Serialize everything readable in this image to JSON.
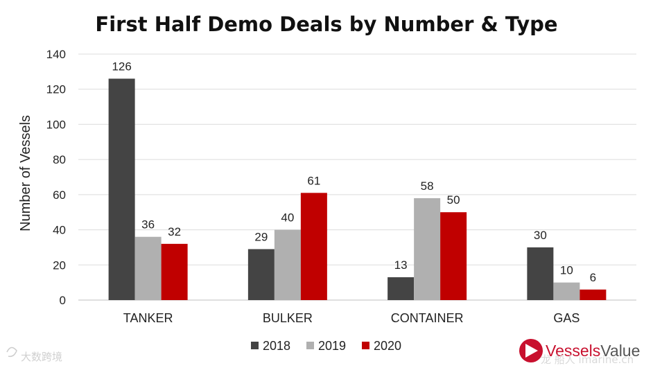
{
  "chart_data": {
    "type": "bar",
    "title": "First Half Demo Deals by Number & Type",
    "xlabel": "",
    "ylabel": "Number of Vessels",
    "ylim": [
      0,
      140
    ],
    "yticks": [
      0,
      20,
      40,
      60,
      80,
      100,
      120,
      140
    ],
    "grid": true,
    "legend_position": "bottom",
    "categories": [
      "TANKER",
      "BULKER",
      "CONTAINER",
      "GAS"
    ],
    "series": [
      {
        "name": "2018",
        "color": "#444444",
        "values": [
          126,
          29,
          13,
          30
        ]
      },
      {
        "name": "2019",
        "color": "#b0b0b0",
        "values": [
          36,
          40,
          58,
          10
        ]
      },
      {
        "name": "2020",
        "color": "#c00000",
        "values": [
          32,
          61,
          50,
          6
        ]
      }
    ]
  },
  "branding": {
    "logo_text_1": "Vessels",
    "logo_text_2": "Value",
    "logo_color": "#c8102e",
    "watermark_left": "大数跨境",
    "watermark_right": "龙 船人 imarine.cn"
  }
}
